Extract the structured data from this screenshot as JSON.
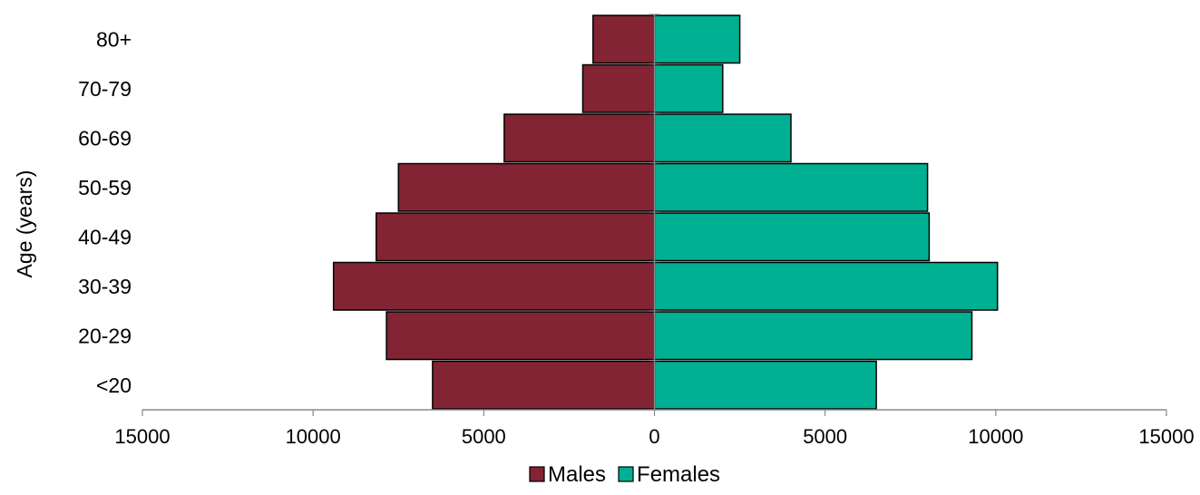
{
  "chart_data": {
    "type": "bar",
    "orientation": "horizontal-population-pyramid",
    "title": "",
    "xlabel": "",
    "ylabel": "Age (years)",
    "categories": [
      "<20",
      "20-29",
      "30-39",
      "40-49",
      "50-59",
      "60-69",
      "70-79",
      "80+"
    ],
    "series": [
      {
        "name": "Males",
        "side": "left",
        "color": "#822433",
        "values": [
          6500,
          7850,
          9400,
          8150,
          7500,
          4400,
          2100,
          1800
        ]
      },
      {
        "name": "Females",
        "side": "right",
        "color": "#00B092",
        "values": [
          6500,
          9300,
          10050,
          8050,
          8000,
          4000,
          2000,
          2500
        ]
      }
    ],
    "xlim": [
      -15000,
      15000
    ],
    "x_ticks": [
      -15000,
      -10000,
      -5000,
      0,
      5000,
      10000,
      15000
    ],
    "x_tick_labels": [
      "15000",
      "10000",
      "5000",
      "0",
      "5000",
      "10000",
      "15000"
    ],
    "grid": false,
    "legend_position": "bottom"
  }
}
